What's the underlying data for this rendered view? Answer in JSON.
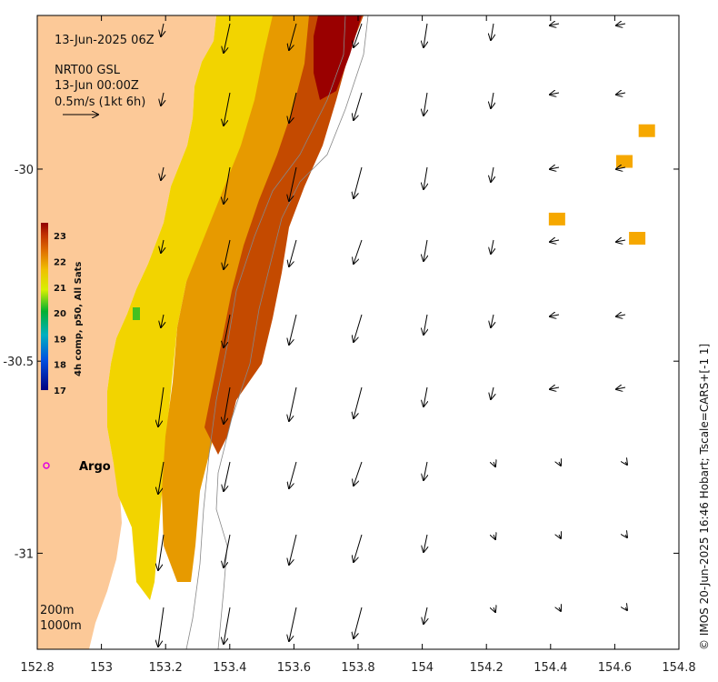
{
  "header": {
    "date": "13-Jun-2025 06Z",
    "product": "NRT00 GSL",
    "valid": "13-Jun 00:00Z",
    "scale": "0.5m/s (1kt 6h)"
  },
  "marker": {
    "label": "Argo",
    "color": "#e000e0"
  },
  "depth_contours": {
    "shallow": "200m",
    "deep": "1000m"
  },
  "colorbar": {
    "title": "4h comp, p50, All Sats",
    "ticks": [
      "23",
      "22",
      "21",
      "20",
      "19",
      "18",
      "17"
    ],
    "min": 17,
    "max": 23.5
  },
  "axes": {
    "x_ticks": [
      "152.8",
      "153",
      "153.2",
      "153.4",
      "153.6",
      "153.8",
      "154",
      "154.2",
      "154.4",
      "154.6",
      "154.8"
    ],
    "y_ticks": [
      "-30",
      "-30.5",
      "-31"
    ]
  },
  "credit": "© IMOS 20-Jun-2025 16:46 Hobart; Tscale=CARS+[-1 1]",
  "colors": {
    "land": "#fcc998",
    "sea": "#ffffff",
    "arrow": "#000000",
    "contour": "#888888"
  },
  "chart_data": {
    "type": "map",
    "region": {
      "lon": [
        152.8,
        154.8
      ],
      "lat": [
        -31.25,
        -29.6
      ]
    },
    "sst_range_c": [
      17,
      23.5
    ],
    "sst_patches": [
      {
        "lon": 154.42,
        "lat": -30.13,
        "temp": 22.6
      },
      {
        "lon": 154.67,
        "lat": -30.18,
        "temp": 22.6
      },
      {
        "lon": 154.63,
        "lat": -29.98,
        "temp": 22.6
      },
      {
        "lon": 154.7,
        "lat": -29.9,
        "temp": 22.6
      }
    ]
  }
}
